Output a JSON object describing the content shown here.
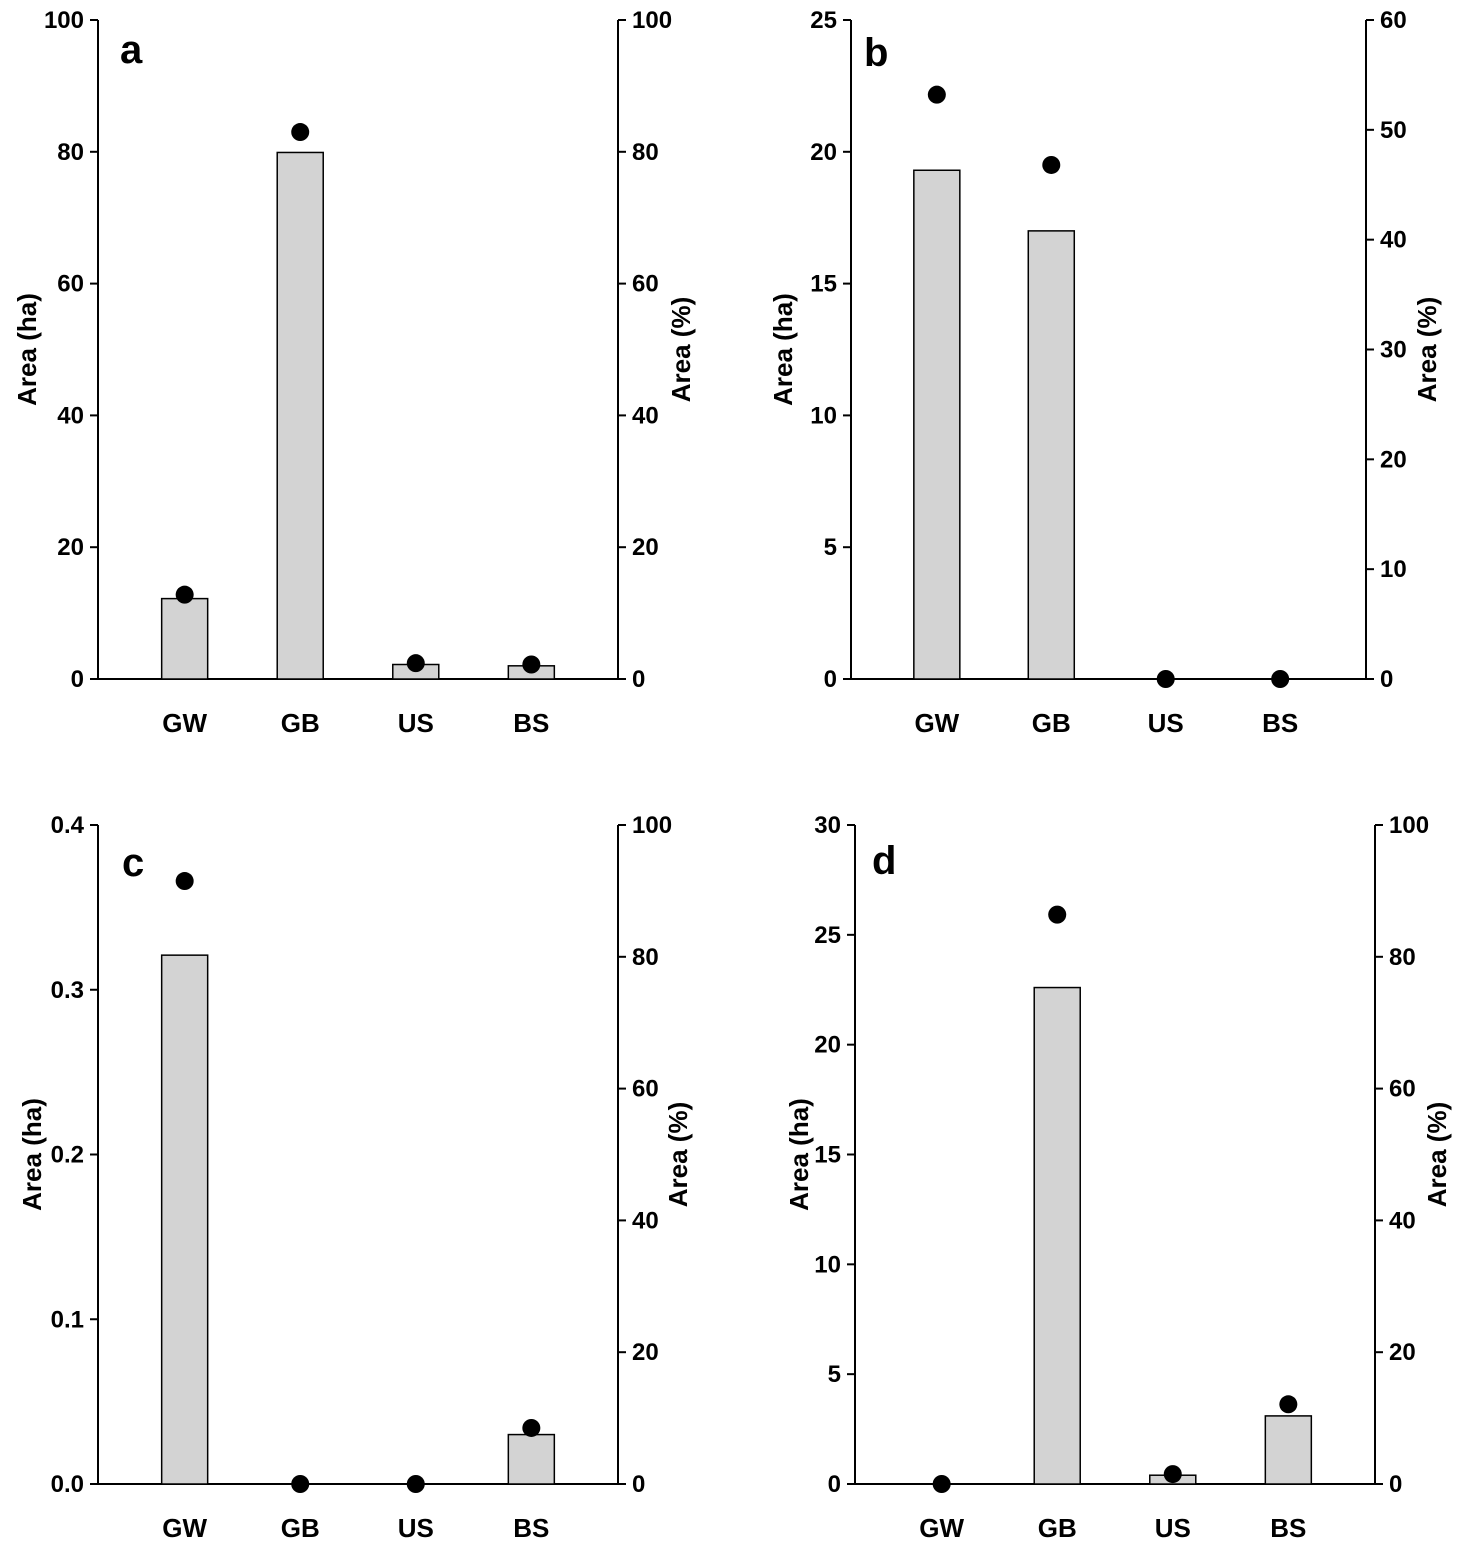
{
  "colors": {
    "bar_fill": "#d3d3d3",
    "bar_stroke": "#000000",
    "point": "#000000",
    "axis": "#000000"
  },
  "chart_data": [
    {
      "type": "bar",
      "panel": "a",
      "categories": [
        "GW",
        "GB",
        "US",
        "BS"
      ],
      "ylabel_left": "Area (ha)",
      "ylabel_right": "Area (%)",
      "ylim_left": [
        0,
        100
      ],
      "ylim_right": [
        0,
        100
      ],
      "yticks_left": [
        "0",
        "20",
        "40",
        "60",
        "80",
        "100"
      ],
      "yticks_right": [
        "0",
        "20",
        "40",
        "60",
        "80",
        "100"
      ],
      "series": [
        {
          "name": "Area (ha)",
          "kind": "bar",
          "axis": "left",
          "values": [
            12.2,
            79.9,
            2.2,
            2.0
          ]
        },
        {
          "name": "Area (%)",
          "kind": "point",
          "axis": "right",
          "values": [
            12.8,
            83.0,
            2.4,
            2.2
          ]
        }
      ]
    },
    {
      "type": "bar",
      "panel": "b",
      "categories": [
        "GW",
        "GB",
        "US",
        "BS"
      ],
      "ylabel_left": "Area (ha)",
      "ylabel_right": "Area (%)",
      "ylim_left": [
        0,
        25
      ],
      "ylim_right": [
        0,
        60
      ],
      "yticks_left": [
        "0",
        "5",
        "10",
        "15",
        "20",
        "25"
      ],
      "yticks_right": [
        "0",
        "10",
        "20",
        "30",
        "40",
        "50",
        "60"
      ],
      "series": [
        {
          "name": "Area (ha)",
          "kind": "bar",
          "axis": "left",
          "values": [
            19.3,
            17.0,
            0,
            0
          ]
        },
        {
          "name": "Area (%)",
          "kind": "point",
          "axis": "right",
          "values": [
            53.2,
            46.8,
            0,
            0
          ]
        }
      ]
    },
    {
      "type": "bar",
      "panel": "c",
      "categories": [
        "GW",
        "GB",
        "US",
        "BS"
      ],
      "ylabel_left": "Area (ha)",
      "ylabel_right": "Area (%)",
      "ylim_left": [
        0,
        0.4
      ],
      "ylim_right": [
        0,
        100
      ],
      "yticks_left": [
        "0.0",
        "0.1",
        "0.2",
        "0.3",
        "0.4"
      ],
      "yticks_right": [
        "0",
        "20",
        "40",
        "60",
        "80",
        "100"
      ],
      "series": [
        {
          "name": "Area (ha)",
          "kind": "bar",
          "axis": "left",
          "values": [
            0.321,
            0,
            0,
            0.03
          ]
        },
        {
          "name": "Area (%)",
          "kind": "point",
          "axis": "right",
          "values": [
            91.5,
            0,
            0,
            8.5
          ]
        }
      ]
    },
    {
      "type": "bar",
      "panel": "d",
      "categories": [
        "GW",
        "GB",
        "US",
        "BS"
      ],
      "ylabel_left": "Area (ha)",
      "ylabel_right": "Area (%)",
      "ylim_left": [
        0,
        30
      ],
      "ylim_right": [
        0,
        100
      ],
      "yticks_left": [
        "0",
        "5",
        "10",
        "15",
        "20",
        "25",
        "30"
      ],
      "yticks_right": [
        "0",
        "20",
        "40",
        "60",
        "80",
        "100"
      ],
      "series": [
        {
          "name": "Area (ha)",
          "kind": "bar",
          "axis": "left",
          "values": [
            0,
            22.6,
            0.4,
            3.1
          ]
        },
        {
          "name": "Area (%)",
          "kind": "point",
          "axis": "right",
          "values": [
            0,
            86.4,
            1.5,
            12.1
          ]
        }
      ]
    }
  ]
}
